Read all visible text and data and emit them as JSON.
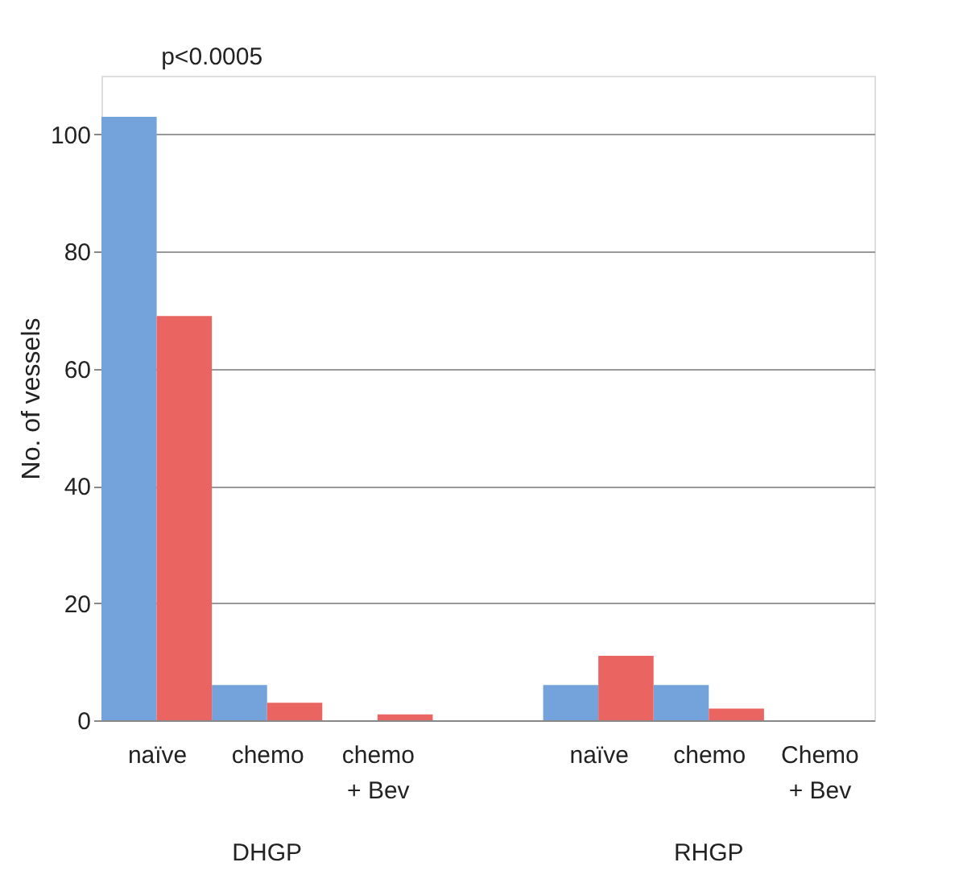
{
  "chart_data": {
    "type": "bar",
    "ylabel": "No. of vessels",
    "categories": [
      "naïve",
      "chemo",
      "chemo\n+ Bev",
      null,
      "naïve",
      "chemo",
      "Chemo\n+ Bev"
    ],
    "series": [
      {
        "color": "#74a3dc",
        "values": [
          103,
          6,
          0,
          null,
          6,
          6,
          0
        ]
      },
      {
        "color": "#ea6462",
        "values": [
          69,
          3,
          1,
          null,
          11,
          2,
          0
        ]
      }
    ],
    "ylim": [
      0,
      110
    ],
    "yticks": [
      0,
      20,
      40,
      60,
      80,
      100
    ],
    "grid": "y",
    "legend": false,
    "annotations": [
      "p<0.0005",
      "DHGP",
      "RHGP"
    ]
  }
}
